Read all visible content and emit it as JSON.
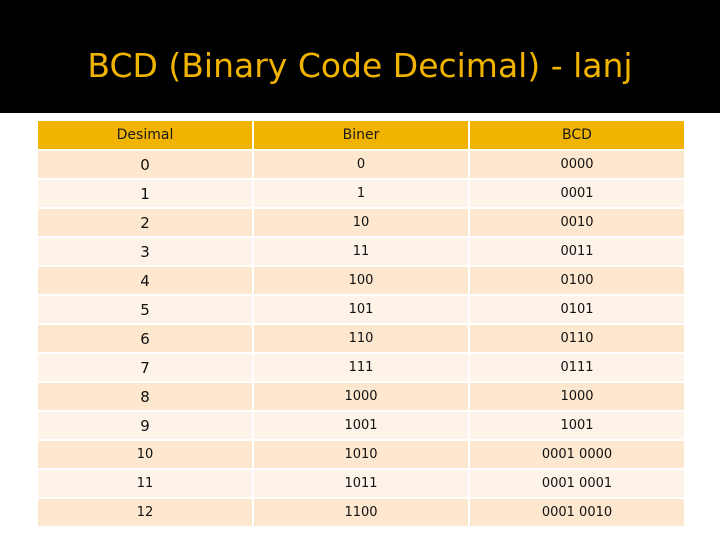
{
  "slide": {
    "title": "BCD (Binary Code Decimal) - lanj"
  },
  "table": {
    "headers": [
      "Desimal",
      "Biner",
      "BCD"
    ],
    "rows": [
      [
        "0",
        "0",
        "0000"
      ],
      [
        "1",
        "1",
        "0001"
      ],
      [
        "2",
        "10",
        "0010"
      ],
      [
        "3",
        "11",
        "0011"
      ],
      [
        "4",
        "100",
        "0100"
      ],
      [
        "5",
        "101",
        "0101"
      ],
      [
        "6",
        "110",
        "0110"
      ],
      [
        "7",
        "111",
        "0111"
      ],
      [
        "8",
        "1000",
        "1000"
      ],
      [
        "9",
        "1001",
        "1001"
      ],
      [
        "10",
        "1010",
        "0001 0000"
      ],
      [
        "11",
        "1011",
        "0001 0001"
      ],
      [
        "12",
        "1100",
        "0001 0010"
      ]
    ]
  },
  "colors": {
    "title_bar_bg": "#000000",
    "title_text": "#f0b400",
    "header_bg": "#f0b400",
    "row_odd_bg": "#fde7cf",
    "row_even_bg": "#fdf3e8"
  }
}
